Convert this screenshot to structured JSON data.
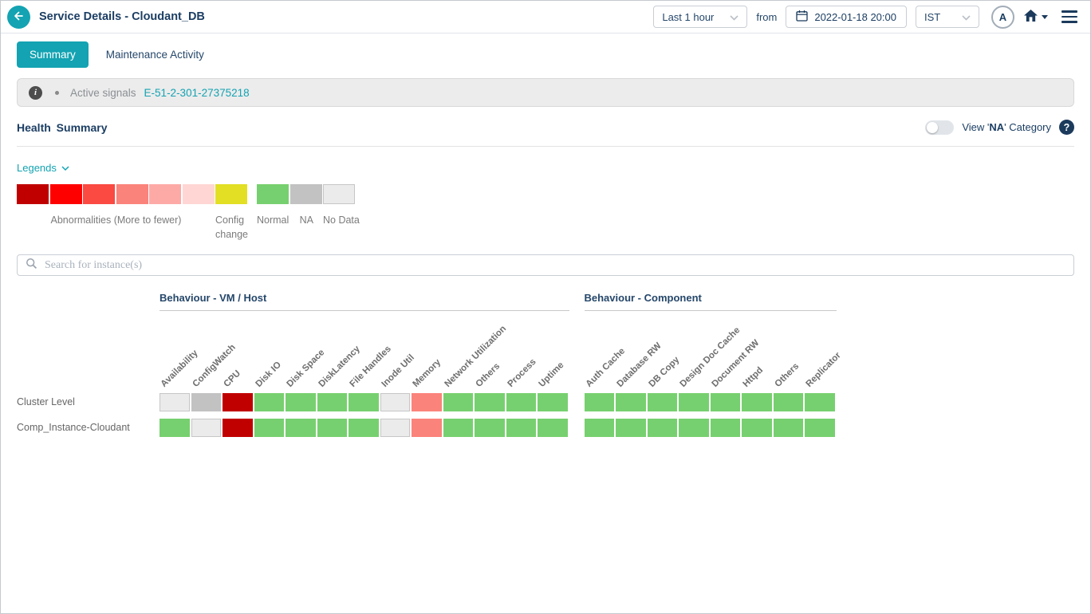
{
  "header": {
    "title": "Service Details - Cloudant_DB",
    "time_range": "Last 1 hour",
    "from_label": "from",
    "datetime": "2022-01-18 20:00",
    "timezone": "IST",
    "avatar": "A"
  },
  "icons": {
    "back": "arrow-left-icon",
    "calendar": "calendar-icon",
    "home": "home-icon",
    "menu": "hamburger-icon",
    "chevron": "chevron-down-icon",
    "info": "info-icon",
    "help": "question-mark-icon",
    "search": "magnifier-icon"
  },
  "colors": {
    "accent": "#13a3b2",
    "navy": "#1c3e63"
  },
  "tabs": [
    {
      "label": "Summary",
      "active": true
    },
    {
      "label": "Maintenance Activity",
      "active": false
    }
  ],
  "signals": {
    "label": "Active signals",
    "link": "E-51-2-301-27375218"
  },
  "health": {
    "title": "Health Summary",
    "na_label_parts": [
      "View '",
      "NA",
      "' Category"
    ]
  },
  "legend": {
    "link_label": "Legends",
    "abnormalities_label": "Abnormalities (More to fewer)",
    "abnormality_colors": [
      "#c00000",
      "#fe0000",
      "#fa4a42",
      "#fa837b",
      "#fdaaa7",
      "#ffd6d4"
    ],
    "items": [
      {
        "key": "config",
        "label": "Config change",
        "color": "#e2df25"
      },
      {
        "key": "normal",
        "label": "Normal",
        "color": "#77d06f"
      },
      {
        "key": "na",
        "label": "NA",
        "color": "#c2c2c2"
      },
      {
        "key": "nodata",
        "label": "No Data",
        "color": "#ebebeb"
      }
    ]
  },
  "search": {
    "placeholder": "Search for instance(s)"
  },
  "heatmap": {
    "row_labels": [
      "Cluster Level",
      "Comp_Instance-Cloudant"
    ],
    "cell_colors": {
      "critical": "#c00000",
      "abnormal": "#fa837b",
      "normal": "#77d06f",
      "na": "#c2c2c2",
      "nodata": "#ebebeb"
    },
    "groups": [
      {
        "title": "Behaviour - VM / Host",
        "columns": [
          "Availability",
          "ConfigWatch",
          "CPU",
          "Disk IO",
          "Disk Space",
          "DiskLatency",
          "File Handles",
          "Inode Util",
          "Memory",
          "Network Utilization",
          "Others",
          "Process",
          "Uptime"
        ],
        "rows": [
          [
            "nodata",
            "na",
            "critical",
            "normal",
            "normal",
            "normal",
            "normal",
            "nodata",
            "abnormal",
            "normal",
            "normal",
            "normal",
            "normal"
          ],
          [
            "normal",
            "nodata",
            "critical",
            "normal",
            "normal",
            "normal",
            "normal",
            "nodata",
            "abnormal",
            "normal",
            "normal",
            "normal",
            "normal"
          ]
        ]
      },
      {
        "title": "Behaviour - Component",
        "columns": [
          "Auth Cache",
          "Database RW",
          "DB Copy",
          "Design Doc Cache",
          "Document RW",
          "Httpd",
          "Others",
          "Replicator"
        ],
        "rows": [
          [
            "normal",
            "normal",
            "normal",
            "normal",
            "normal",
            "normal",
            "normal",
            "normal"
          ],
          [
            "normal",
            "normal",
            "normal",
            "normal",
            "normal",
            "normal",
            "normal",
            "normal"
          ]
        ]
      }
    ]
  }
}
